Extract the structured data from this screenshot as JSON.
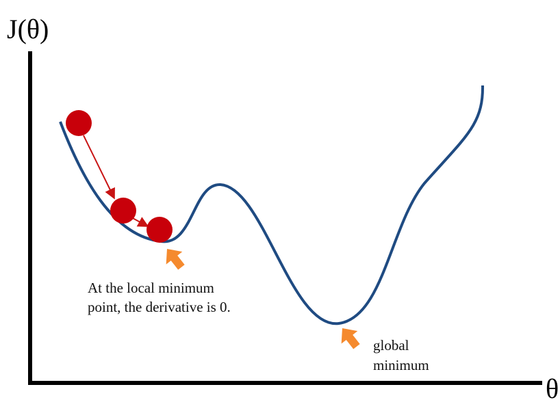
{
  "axes": {
    "y_label": "J(θ)",
    "x_label": "θ"
  },
  "annotations": [
    {
      "lines": [
        "At the local minimum",
        "point, the derivative is 0."
      ]
    },
    {
      "lines": [
        "global",
        "minimum"
      ]
    }
  ]
}
